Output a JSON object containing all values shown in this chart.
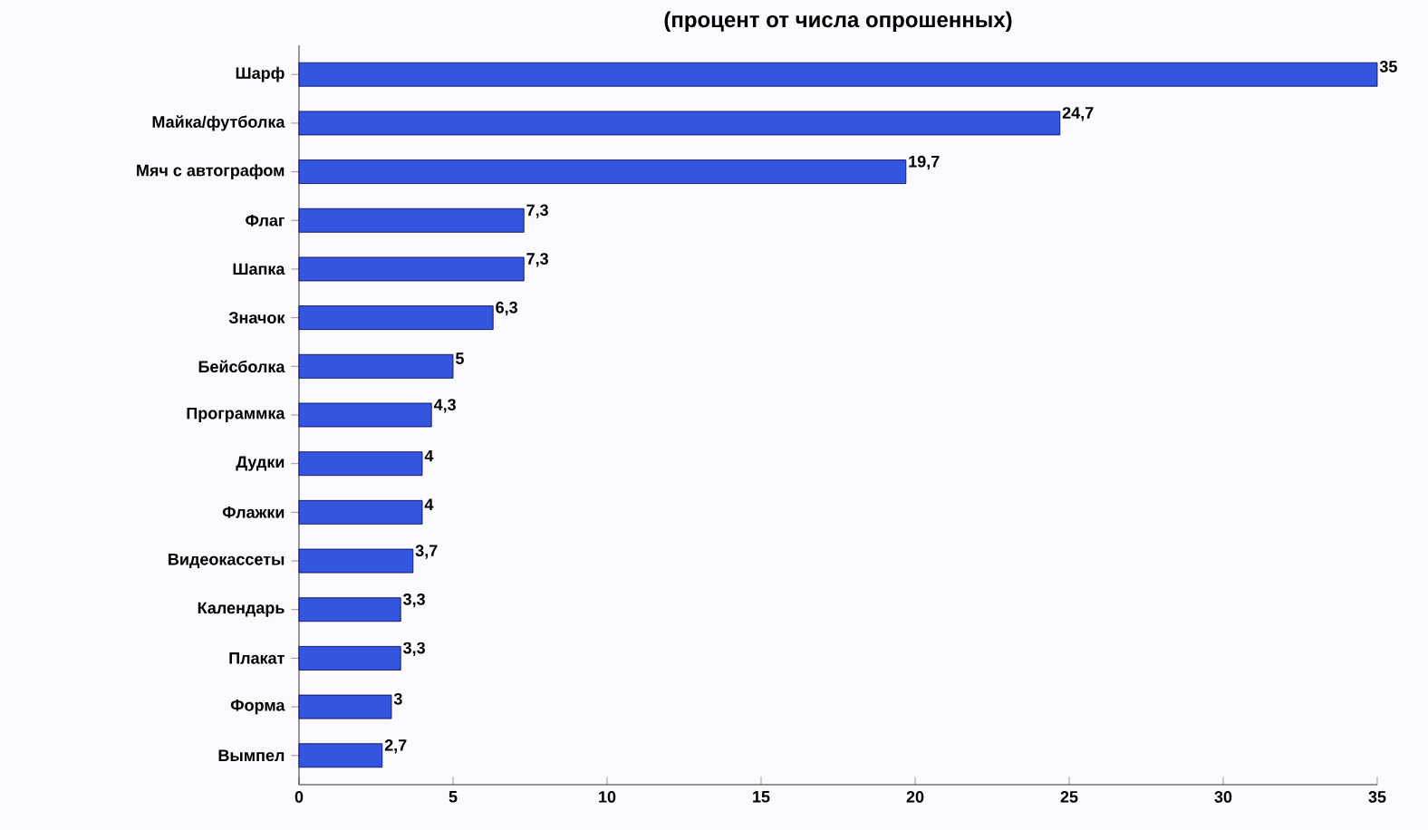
{
  "chart_data": {
    "type": "bar",
    "orientation": "horizontal",
    "title": "(процент от числа опрошенных)",
    "categories": [
      "Шарф",
      "Майка/футболка",
      "Мяч с автографом",
      "Флаг",
      "Шапка",
      "Значок",
      "Бейсболка",
      "Программка",
      "Дудки",
      "Флажки",
      "Видеокассеты",
      "Календарь",
      "Плакат",
      "Форма",
      "Вымпел"
    ],
    "values": [
      35,
      24.7,
      19.7,
      7.3,
      7.3,
      6.3,
      5,
      4.3,
      4,
      4,
      3.7,
      3.3,
      3.3,
      3,
      2.7
    ],
    "value_labels": [
      "35",
      "24,7",
      "19,7",
      "7,3",
      "7,3",
      "6,3",
      "5",
      "4,3",
      "4",
      "4",
      "3,7",
      "3,3",
      "3,3",
      "3",
      "2,7"
    ],
    "color": "#3355e0",
    "xlim": [
      0,
      35
    ],
    "xticks": [
      0,
      5,
      10,
      15,
      20,
      25,
      30,
      35
    ]
  }
}
